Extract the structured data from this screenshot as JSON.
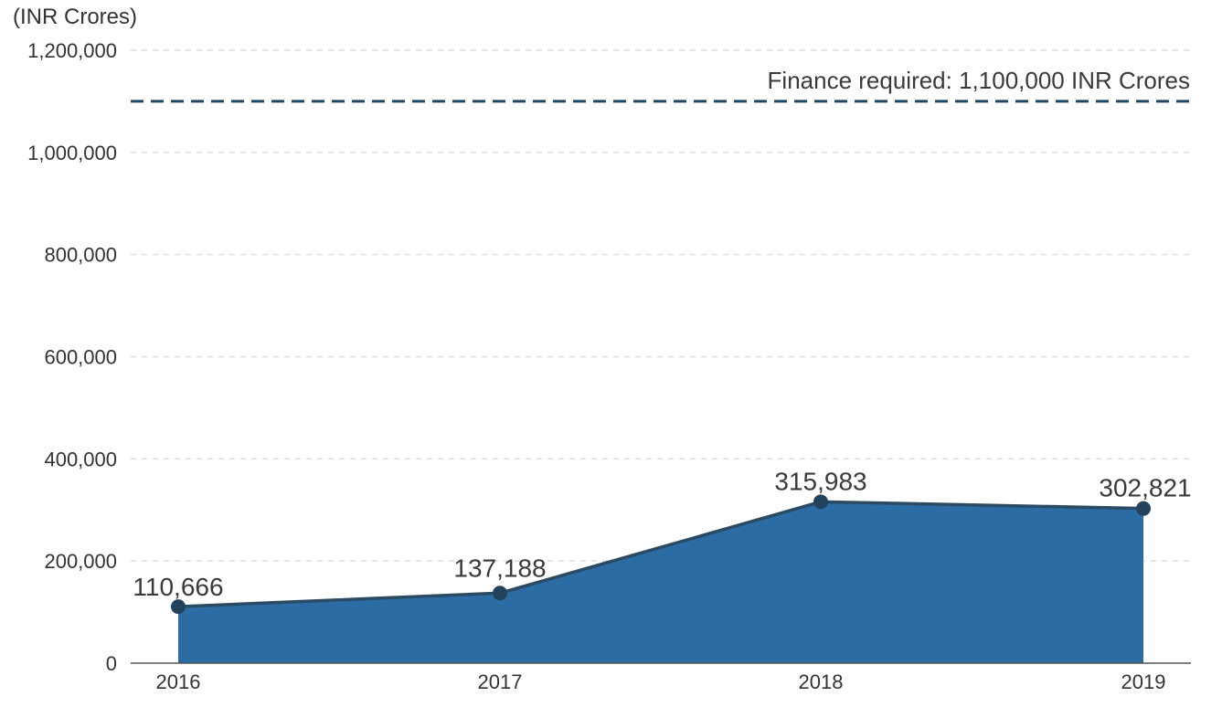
{
  "chart_data": {
    "type": "area",
    "categories": [
      "2016",
      "2017",
      "2018",
      "2019"
    ],
    "values": [
      110666,
      137188,
      315983,
      302821
    ],
    "value_labels": [
      "110,666",
      "137,188",
      "315,983",
      "302,821"
    ],
    "y_unit_label": "(INR Crores)",
    "ylim": [
      0,
      1200000
    ],
    "y_ticks": [
      0,
      200000,
      400000,
      600000,
      800000,
      1000000,
      1200000
    ],
    "y_tick_labels": [
      "0",
      "200,000",
      "400,000",
      "600,000",
      "800,000",
      "1,000,000",
      "1,200,000"
    ],
    "reference_line": {
      "value": 1100000,
      "label": "Finance required: 1,100,000 INR Crores"
    },
    "grid": true,
    "legend": "none",
    "colors": {
      "area_fill": "#2a6ca3",
      "line": "#2b4a63",
      "marker": "#23435c",
      "reference_line": "#1f4763"
    }
  }
}
